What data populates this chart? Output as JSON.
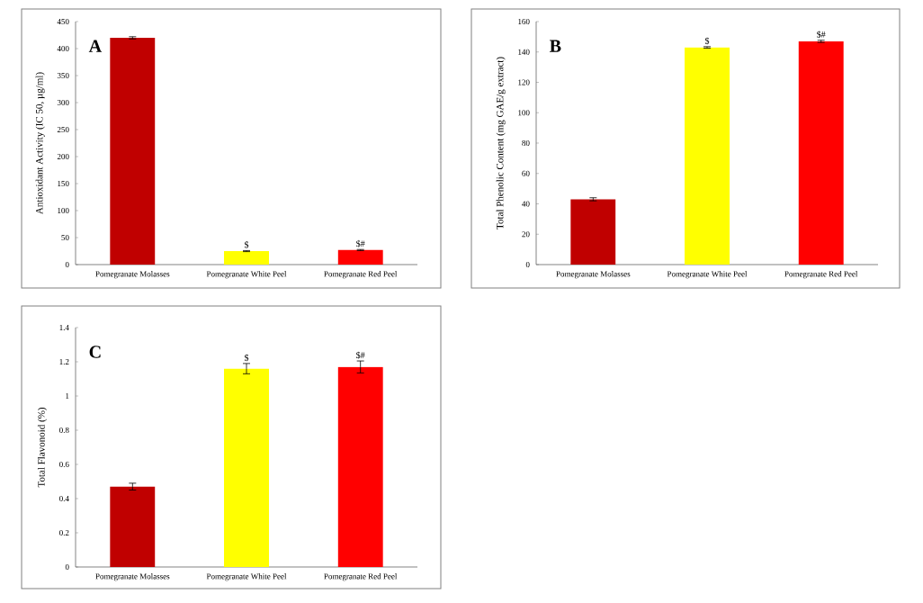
{
  "chart_data": [
    {
      "type": "bar",
      "title": "A",
      "ylabel": "Antioxidant Activity (IC 50, µg/ml)",
      "categories": [
        "Pomegranate Molasses",
        "Pomegranate White Peel",
        "Pomegranate Red Peel"
      ],
      "values": [
        420,
        25,
        27
      ],
      "errors": [
        2,
        1,
        1
      ],
      "colors": [
        "#c00000",
        "#ffff00",
        "#ff0000"
      ],
      "ylim": [
        0,
        450
      ],
      "yticks": [
        0,
        50,
        100,
        150,
        200,
        250,
        300,
        350,
        400,
        450
      ],
      "annotations": [
        {
          "text": "$",
          "x": "Pomegranate White Peel",
          "y": 25
        },
        {
          "text": "$#",
          "x": "Pomegranate Red Peel",
          "y": 27
        }
      ]
    },
    {
      "type": "bar",
      "title": "B",
      "ylabel": "Total Phenolic Content (mg GAE/g extract)",
      "categories": [
        "Pomegranate Molasses",
        "Pomegranate White Peel",
        "Pomegranate Red Peel"
      ],
      "values": [
        43,
        143,
        147
      ],
      "errors": [
        1,
        0.5,
        0.7
      ],
      "colors": [
        "#c00000",
        "#ffff00",
        "#ff0000"
      ],
      "ylim": [
        0,
        160
      ],
      "yticks": [
        0,
        20,
        40,
        60,
        80,
        100,
        120,
        140,
        160
      ],
      "annotations": [
        {
          "text": "$",
          "x": "Pomegranate White Peel",
          "y": 143
        },
        {
          "text": "$#",
          "x": "Pomegranate Red Peel",
          "y": 147
        }
      ]
    },
    {
      "type": "bar",
      "title": "C",
      "ylabel": "Total Flavonoid (%)",
      "categories": [
        "Pomegranate Molasses",
        "Pomegranate White Peel",
        "Pomegranate Red Peel"
      ],
      "values": [
        0.47,
        1.16,
        1.17
      ],
      "errors": [
        0.02,
        0.03,
        0.035
      ],
      "colors": [
        "#c00000",
        "#ffff00",
        "#ff0000"
      ],
      "ylim": [
        0,
        1.4
      ],
      "yticks": [
        0,
        0.2,
        0.4,
        0.6,
        0.8,
        1,
        1.2,
        1.4
      ],
      "annotations": [
        {
          "text": "$",
          "x": "Pomegranate White Peel",
          "y": 1.16
        },
        {
          "text": "$#",
          "x": "Pomegranate Red Peel",
          "y": 1.17
        }
      ]
    }
  ]
}
